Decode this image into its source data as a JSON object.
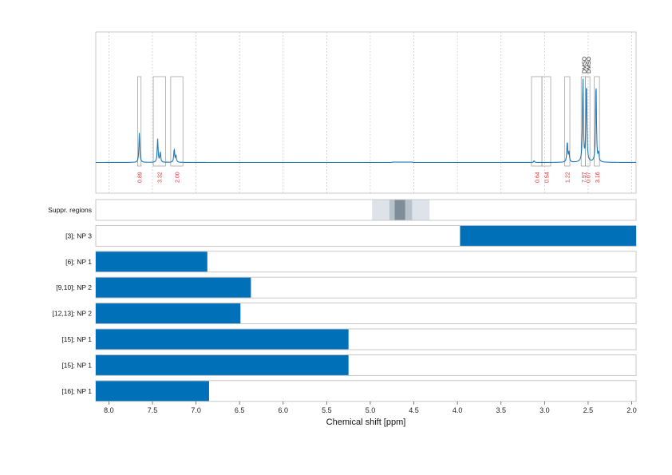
{
  "chart_data": {
    "type": "line",
    "xlabel": "Chemical shift [ppm]",
    "xlim": [
      8.15,
      1.95
    ],
    "x_reversed": true,
    "x_ticks": [
      "8.0",
      "7.5",
      "7.0",
      "6.5",
      "6.0",
      "5.5",
      "5.0",
      "4.5",
      "4.0",
      "3.5",
      "3.0",
      "2.5",
      "2.0"
    ],
    "spectrum": {
      "color": "#1f77b4",
      "peaks": [
        {
          "ppm": 7.65,
          "height": 0.36
        },
        {
          "ppm": 7.44,
          "height": 0.28
        },
        {
          "ppm": 7.41,
          "height": 0.12
        },
        {
          "ppm": 7.25,
          "height": 0.16
        },
        {
          "ppm": 7.23,
          "height": 0.08
        },
        {
          "ppm": 3.12,
          "height": 0.02
        },
        {
          "ppm": 2.74,
          "height": 0.25
        },
        {
          "ppm": 2.72,
          "height": 0.12
        },
        {
          "ppm": 2.56,
          "height": 1.0
        },
        {
          "ppm": 2.52,
          "height": 0.98
        },
        {
          "ppm": 2.41,
          "height": 0.98
        },
        {
          "ppm": 2.38,
          "height": 0.1
        }
      ]
    },
    "integration_regions": [
      {
        "from": 7.67,
        "to": 7.63,
        "value": "0.89"
      },
      {
        "from": 7.49,
        "to": 7.35,
        "value": "3.32"
      },
      {
        "from": 7.29,
        "to": 7.15,
        "value": "2.00"
      },
      {
        "from": 3.15,
        "to": 3.03,
        "value": "0.64"
      },
      {
        "from": 3.03,
        "to": 2.93,
        "value": "0.54"
      },
      {
        "from": 2.77,
        "to": 2.71,
        "value": "1.22"
      },
      {
        "from": 2.58,
        "to": 2.53,
        "value": "7.97"
      },
      {
        "from": 2.53,
        "to": 2.48,
        "value": "0.07"
      },
      {
        "from": 2.43,
        "to": 2.37,
        "value": "3.16"
      }
    ],
    "solvent_labels": [
      {
        "ppm": 2.55,
        "text": "DMSO"
      },
      {
        "ppm": 2.5,
        "text": "DMSO"
      }
    ],
    "suppression_regions": {
      "label": "Suppr. regions",
      "bands": [
        {
          "from": 4.98,
          "to": 4.32,
          "color": "#dde3e8"
        },
        {
          "from": 4.78,
          "to": 4.52,
          "color": "#b7c2cb"
        },
        {
          "from": 4.72,
          "to": 4.6,
          "color": "#7f8d98"
        }
      ]
    },
    "rows": [
      {
        "label": "[3]; NP 3",
        "from": 3.97,
        "to": 1.95
      },
      {
        "label": "[6]; NP 1",
        "from": 8.15,
        "to": 6.87
      },
      {
        "label": "[9,10]; NP 2",
        "from": 8.15,
        "to": 6.37
      },
      {
        "label": "[12,13]; NP 2",
        "from": 8.15,
        "to": 6.49
      },
      {
        "label": "[15]; NP 1",
        "from": 8.15,
        "to": 5.25
      },
      {
        "label": "[15]; NP 1",
        "from": 8.15,
        "to": 5.25
      },
      {
        "label": "[16]; NP 1",
        "from": 8.15,
        "to": 6.85
      }
    ],
    "bar_color": "#0070b8",
    "grid": true
  }
}
